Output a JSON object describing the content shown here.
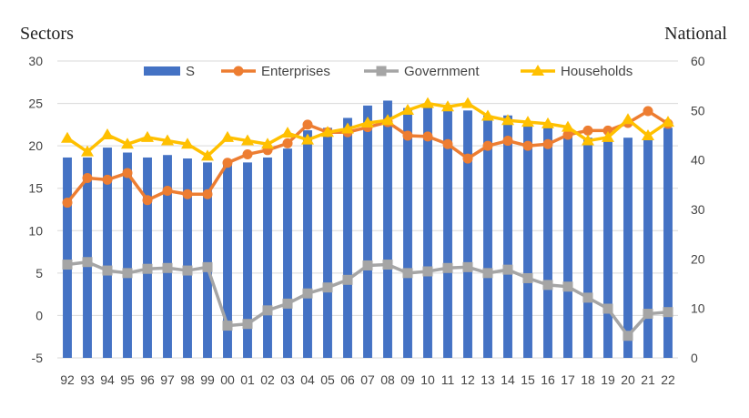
{
  "chart_data": {
    "type": "bar",
    "left_axis_label": "Sectors",
    "right_axis_label": "National",
    "categories": [
      "92",
      "93",
      "94",
      "95",
      "96",
      "97",
      "98",
      "99",
      "00",
      "01",
      "02",
      "03",
      "04",
      "05",
      "06",
      "07",
      "08",
      "09",
      "10",
      "11",
      "12",
      "13",
      "14",
      "15",
      "16",
      "17",
      "18",
      "19",
      "20",
      "21",
      "22"
    ],
    "ylim_left": [
      -5,
      30
    ],
    "yticks_left": [
      -5,
      0,
      5,
      10,
      15,
      20,
      25,
      30
    ],
    "ylim_right": [
      0,
      60
    ],
    "yticks_right": [
      0,
      10,
      20,
      30,
      40,
      50,
      60
    ],
    "grid": true,
    "legend_position": "top",
    "bars": {
      "name": "S",
      "axis": "right",
      "color": "#4472c4",
      "values": [
        40.5,
        40.5,
        42.5,
        41.5,
        40.5,
        41,
        40.3,
        39.5,
        39,
        39.5,
        40.5,
        42.3,
        46,
        46.5,
        48.5,
        51,
        52,
        50.5,
        51,
        51,
        50,
        49,
        49,
        47.5,
        46.5,
        45,
        44.5,
        44,
        44.5,
        44.5,
        46.5
      ]
    },
    "series": [
      {
        "name": "Enterprises",
        "axis": "left",
        "color": "#ed7d31",
        "marker": "circle",
        "values": [
          13.3,
          16.2,
          16.0,
          16.8,
          13.6,
          14.7,
          14.3,
          14.3,
          18.0,
          19.0,
          19.5,
          20.3,
          22.5,
          21.6,
          21.6,
          22.2,
          22.8,
          21.2,
          21.1,
          20.2,
          18.5,
          20.0,
          20.6,
          20.0,
          20.2,
          21.3,
          21.8,
          21.8,
          22.7,
          24.1,
          22.6
        ]
      },
      {
        "name": "Government",
        "axis": "left",
        "color": "#a5a5a5",
        "marker": "square",
        "values": [
          6.0,
          6.3,
          5.3,
          5.0,
          5.5,
          5.6,
          5.3,
          5.7,
          -1.2,
          -1.0,
          0.6,
          1.4,
          2.6,
          3.3,
          4.2,
          5.9,
          6.0,
          5.0,
          5.2,
          5.6,
          5.7,
          5.0,
          5.4,
          4.4,
          3.6,
          3.4,
          2.1,
          0.8,
          -2.4,
          0.2,
          0.4
        ]
      },
      {
        "name": "Households",
        "axis": "left",
        "color": "#ffc000",
        "marker": "triangle",
        "values": [
          20.9,
          19.3,
          21.3,
          20.2,
          21.0,
          20.6,
          20.2,
          18.8,
          21.0,
          20.6,
          20.2,
          21.5,
          20.7,
          21.6,
          22.0,
          22.7,
          23.0,
          24.2,
          25.0,
          24.6,
          25.0,
          23.5,
          23.0,
          22.8,
          22.6,
          22.2,
          20.6,
          21.0,
          23.1,
          21.2,
          22.8
        ]
      }
    ]
  }
}
